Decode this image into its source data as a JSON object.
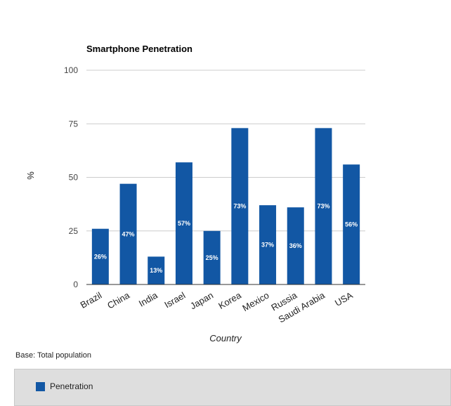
{
  "chart_data": {
    "type": "bar",
    "title": "Smartphone Penetration",
    "xlabel": "Country",
    "ylabel": "%",
    "ylim": [
      0,
      100
    ],
    "yticks": [
      0,
      25,
      50,
      75,
      100
    ],
    "grid": true,
    "legend_position": "bottom",
    "categories": [
      "Brazil",
      "China",
      "India",
      "Israel",
      "Japan",
      "Korea",
      "Mexico",
      "Russia",
      "Saudi Arabia",
      "USA"
    ],
    "series": [
      {
        "name": "Penetration",
        "color": "#1257a4",
        "values": [
          26,
          47,
          13,
          57,
          25,
          73,
          37,
          36,
          73,
          56
        ],
        "data_labels": [
          "26%",
          "47%",
          "13%",
          "57%",
          "25%",
          "73%",
          "37%",
          "36%",
          "73%",
          "56%"
        ]
      }
    ]
  },
  "footnote": "Base: Total population",
  "legend": {
    "items": [
      {
        "label": "Penetration",
        "color": "#1257a4"
      }
    ]
  }
}
